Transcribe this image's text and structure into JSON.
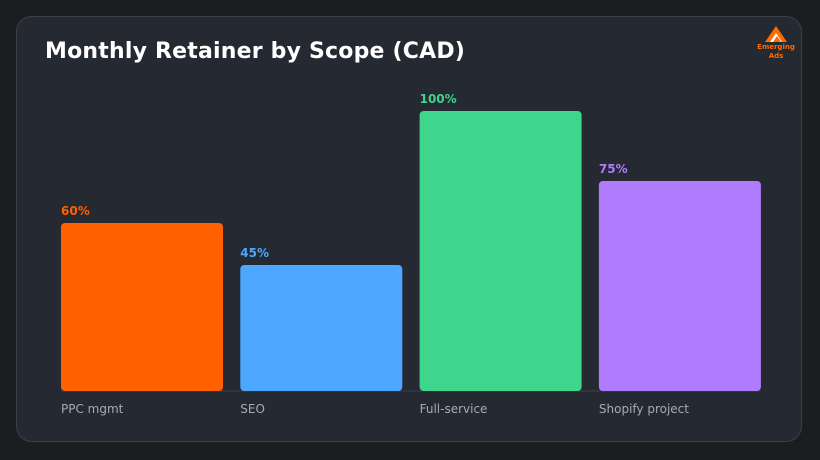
{
  "title": "Monthly Retainer by Scope (CAD)",
  "logo": {
    "line1": "Emerging",
    "line2": "Ads",
    "color": "#ff6a00"
  },
  "chart_data": {
    "type": "bar",
    "categories": [
      "PPC mgmt",
      "SEO",
      "Full-service",
      "Shopify project"
    ],
    "values": [
      60,
      45,
      100,
      75
    ],
    "value_labels": [
      "60%",
      "45%",
      "100%",
      "75%"
    ],
    "colors": [
      "#ff6000",
      "#4da6ff",
      "#3dd68c",
      "#b07cff"
    ],
    "ylim": [
      0,
      100
    ],
    "grid": false,
    "legend": "none"
  }
}
